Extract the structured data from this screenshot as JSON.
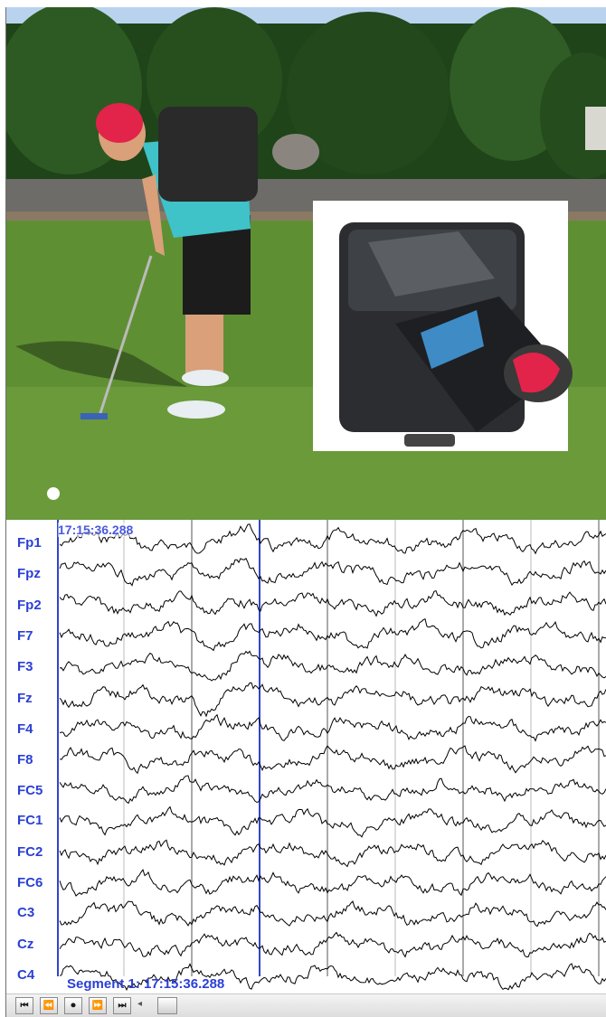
{
  "eeg": {
    "start_time": "17:15:36.288",
    "segment_label": "Segment 1: 17:15:36.288",
    "channels": [
      "Fp1",
      "Fpz",
      "Fp2",
      "F7",
      "F3",
      "Fz",
      "F4",
      "F8",
      "FC5",
      "FC1",
      "FC2",
      "FC6",
      "C3",
      "Cz",
      "C4"
    ]
  },
  "toolbar": {
    "first": "⏮",
    "prev": "⏪",
    "play": "⏺",
    "next": "⏩",
    "last": "⏭",
    "scroll_arrow": "◂"
  },
  "colors": {
    "label": "#2a3fd6",
    "trace": "#000000",
    "marker": "#3344cc"
  }
}
